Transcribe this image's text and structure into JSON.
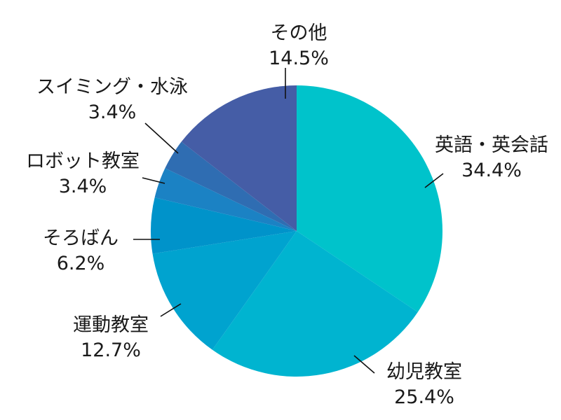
{
  "chart_data": {
    "type": "pie",
    "title": "",
    "start_angle_deg": 0,
    "direction": "clockwise",
    "categories": [
      "英語・英会話",
      "幼児教室",
      "運動教室",
      "そろばん",
      "ロボット教室",
      "スイミング・水泳",
      "その他"
    ],
    "values": [
      34.4,
      25.4,
      12.7,
      6.2,
      3.4,
      3.4,
      14.5
    ],
    "value_labels": [
      "34.4%",
      "25.4%",
      "12.7%",
      "6.2%",
      "3.4%",
      "3.4%",
      "14.5%"
    ],
    "colors": [
      "#00c3cb",
      "#00b4d0",
      "#00a3cf",
      "#0093ca",
      "#1b82c4",
      "#2f6db2",
      "#455da6"
    ],
    "legend": "none (leader-line labels)"
  },
  "labels": [
    {
      "name": "英語・英会話",
      "pct": "34.4%"
    },
    {
      "name": "幼児教室",
      "pct": "25.4%"
    },
    {
      "name": "運動教室",
      "pct": "12.7%"
    },
    {
      "name": "そろばん",
      "pct": "6.2%"
    },
    {
      "name": "ロボット教室",
      "pct": "3.4%"
    },
    {
      "name": "スイミング・水泳",
      "pct": "3.4%"
    },
    {
      "name": "その他",
      "pct": "14.5%"
    }
  ]
}
